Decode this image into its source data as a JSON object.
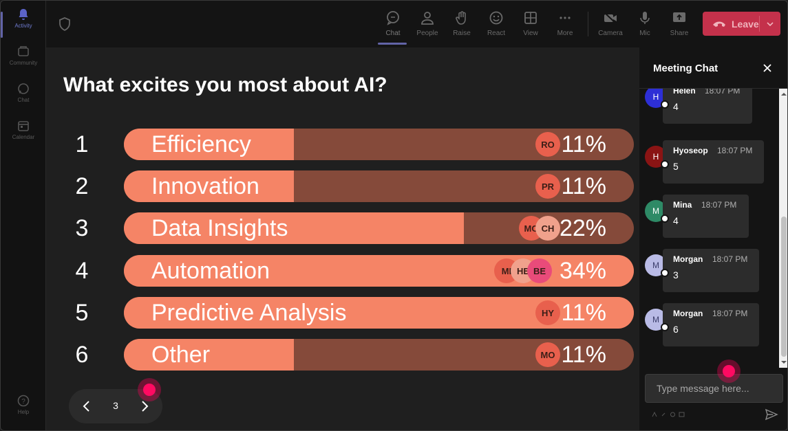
{
  "rail": {
    "items": [
      {
        "label": "Activity",
        "icon": "bell-icon"
      },
      {
        "label": "Community",
        "icon": "community-icon"
      },
      {
        "label": "Chat",
        "icon": "chat-icon"
      },
      {
        "label": "Calendar",
        "icon": "calendar-icon"
      }
    ],
    "help_label": "Help"
  },
  "topbar": {
    "buttons": [
      {
        "label": "Chat",
        "icon": "chat-icon"
      },
      {
        "label": "People",
        "icon": "people-icon"
      },
      {
        "label": "Raise",
        "icon": "raise-hand-icon"
      },
      {
        "label": "React",
        "icon": "react-icon"
      },
      {
        "label": "View",
        "icon": "view-icon"
      },
      {
        "label": "More",
        "icon": "more-icon"
      },
      {
        "label": "Camera",
        "icon": "camera-icon"
      },
      {
        "label": "Mic",
        "icon": "mic-icon"
      },
      {
        "label": "Share",
        "icon": "share-icon"
      }
    ],
    "leave_label": "Leave",
    "leave_color": "#c4314b"
  },
  "poll": {
    "question": "What excites you most about AI?",
    "options": [
      {
        "num": "1",
        "label": "Efficiency",
        "pct": "11%",
        "share": 0.11,
        "avatars": [
          {
            "initials": "RO",
            "color": "#e8604d"
          }
        ]
      },
      {
        "num": "2",
        "label": "Innovation",
        "pct": "11%",
        "share": 0.11,
        "avatars": [
          {
            "initials": "PR",
            "color": "#e8604d"
          }
        ]
      },
      {
        "num": "3",
        "label": "Data Insights",
        "pct": "22%",
        "share": 0.22,
        "avatars": [
          {
            "initials": "MO",
            "color": "#e8604d"
          },
          {
            "initials": "CH",
            "color": "#f0a18c"
          }
        ]
      },
      {
        "num": "4",
        "label": "Automation",
        "pct": "34%",
        "share": 0.34,
        "avatars": [
          {
            "initials": "MI",
            "color": "#e8604d"
          },
          {
            "initials": "HE",
            "color": "#f0a18c"
          },
          {
            "initials": "BE",
            "color": "#e94b7a"
          }
        ]
      },
      {
        "num": "5",
        "label": "Predictive Analysis",
        "pct": "11%",
        "share": 0.11,
        "avatars": [
          {
            "initials": "HY",
            "color": "#e8604d"
          }
        ]
      },
      {
        "num": "6",
        "label": "Other",
        "pct": "11%",
        "share": 0.11,
        "avatars": [
          {
            "initials": "MO",
            "color": "#e8604d"
          }
        ]
      }
    ],
    "colors": {
      "bar_fill": "#f58466",
      "bar_track": "#854a3a"
    }
  },
  "pager": {
    "page": "3"
  },
  "chat": {
    "title": "Meeting Chat",
    "messages": [
      {
        "initial": "H",
        "name": "Helen",
        "time": "18:07 PM",
        "text": "4",
        "avatar_color": "#2d2fd6"
      },
      {
        "initial": "H",
        "name": "Hyoseop",
        "time": "18:07 PM",
        "text": "5",
        "avatar_color": "#8a1414"
      },
      {
        "initial": "M",
        "name": "Mina",
        "time": "18:07 PM",
        "text": "4",
        "avatar_color": "#2e8a66"
      },
      {
        "initial": "M",
        "name": "Morgan",
        "time": "18:07 PM",
        "text": "3",
        "avatar_color": "#b9bbe6"
      },
      {
        "initial": "M",
        "name": "Morgan",
        "time": "18:07 PM",
        "text": "6",
        "avatar_color": "#b9bbe6"
      }
    ],
    "input_placeholder": "Type message here..."
  }
}
